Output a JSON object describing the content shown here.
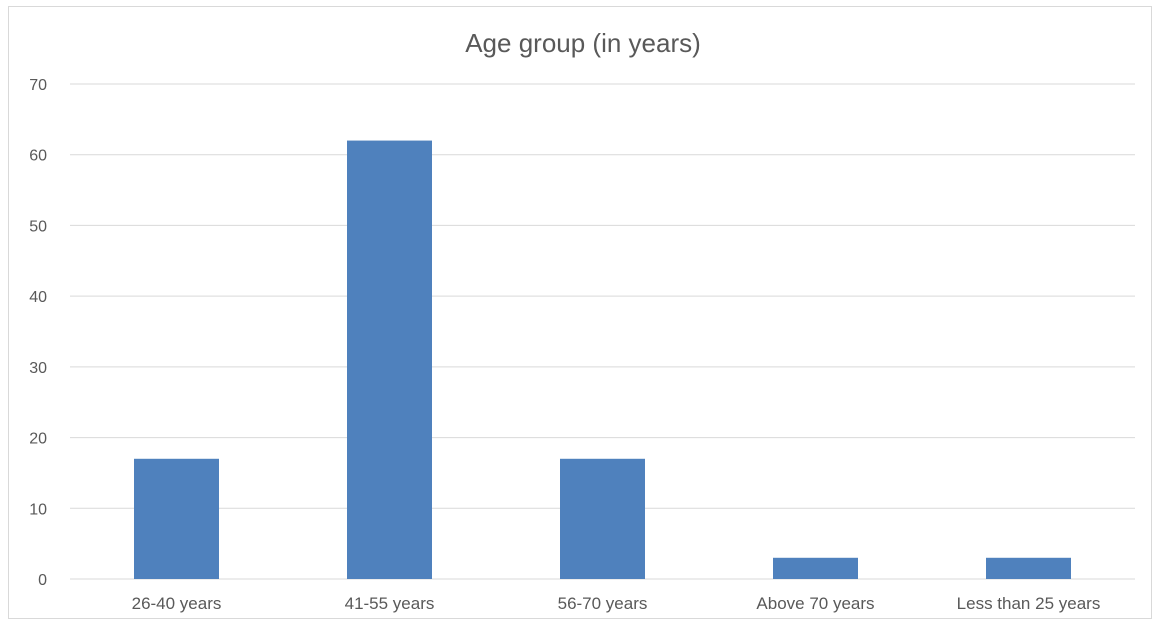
{
  "chart_data": {
    "type": "bar",
    "title": "Age group (in years)",
    "categories": [
      "26-40 years",
      "41-55 years",
      "56-70 years",
      "Above 70 years",
      "Less than 25 years"
    ],
    "values": [
      17,
      62,
      17,
      3,
      3
    ],
    "ylim": [
      0,
      70
    ],
    "yticks": [
      0,
      10,
      20,
      30,
      40,
      50,
      60,
      70
    ],
    "xlabel": "",
    "ylabel": "",
    "grid": true,
    "bar_color": "#4f81bd",
    "grid_color": "#d9d9d9"
  }
}
